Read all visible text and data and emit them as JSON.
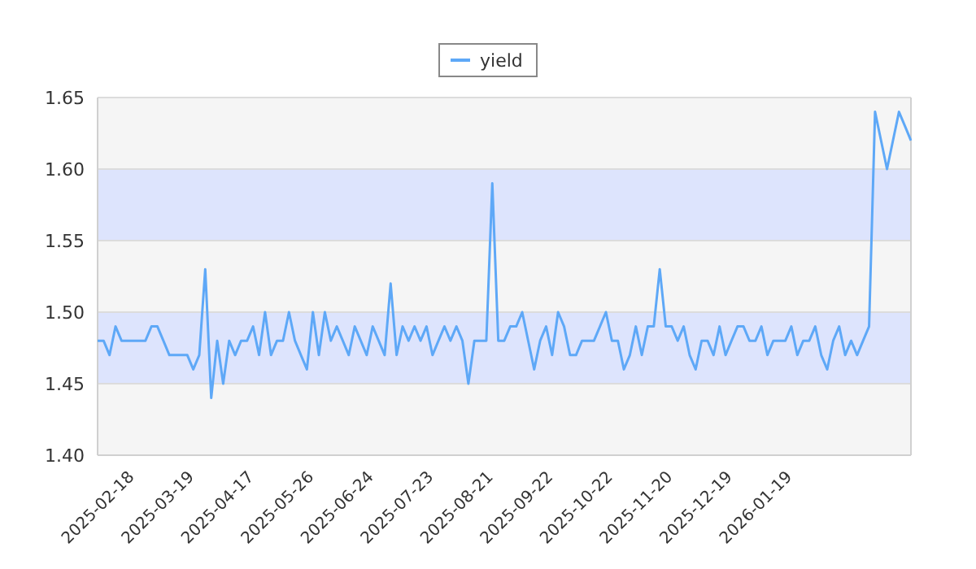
{
  "chart_data": {
    "type": "line",
    "categories": [
      "2025-02-18",
      null,
      null,
      null,
      null,
      null,
      null,
      null,
      null,
      null,
      "2025-03-19",
      null,
      null,
      null,
      null,
      null,
      null,
      null,
      null,
      null,
      "2025-04-17",
      null,
      null,
      null,
      null,
      null,
      null,
      null,
      null,
      null,
      "2025-05-26",
      null,
      null,
      null,
      null,
      null,
      null,
      null,
      null,
      null,
      "2025-06-24",
      null,
      null,
      null,
      null,
      null,
      null,
      null,
      null,
      null,
      "2025-07-23",
      null,
      null,
      null,
      null,
      null,
      null,
      null,
      null,
      null,
      "2025-08-21",
      null,
      null,
      null,
      null,
      null,
      null,
      null,
      null,
      null,
      "2025-09-22",
      null,
      null,
      null,
      null,
      null,
      null,
      null,
      null,
      null,
      "2025-10-22",
      null,
      null,
      null,
      null,
      null,
      null,
      null,
      null,
      null,
      "2025-11-20",
      null,
      null,
      null,
      null,
      null,
      null,
      null,
      null,
      null,
      "2025-12-19",
      null,
      null,
      null,
      null,
      null,
      null,
      null,
      null,
      null,
      "2026-01-19",
      null,
      null,
      null,
      null,
      null,
      null,
      null,
      null,
      null,
      null,
      null,
      null,
      null,
      null,
      null,
      null,
      null,
      null,
      null,
      null,
      null,
      null,
      null,
      null,
      null,
      null
    ],
    "series": [
      {
        "name": "yield",
        "color": "#5ea8f7",
        "values": [
          1.48,
          1.48,
          1.47,
          1.49,
          1.48,
          1.48,
          1.48,
          1.48,
          1.48,
          1.49,
          1.49,
          1.48,
          1.47,
          1.47,
          1.47,
          1.47,
          1.46,
          1.47,
          1.53,
          1.44,
          1.48,
          1.45,
          1.48,
          1.47,
          1.48,
          1.48,
          1.49,
          1.47,
          1.5,
          1.47,
          1.48,
          1.48,
          1.5,
          1.48,
          1.47,
          1.46,
          1.5,
          1.47,
          1.5,
          1.48,
          1.49,
          1.48,
          1.47,
          1.49,
          1.48,
          1.47,
          1.49,
          1.48,
          1.47,
          1.52,
          1.47,
          1.49,
          1.48,
          1.49,
          1.48,
          1.49,
          1.47,
          1.48,
          1.49,
          1.48,
          1.49,
          1.48,
          1.45,
          1.48,
          1.48,
          1.48,
          1.59,
          1.48,
          1.48,
          1.49,
          1.49,
          1.5,
          1.48,
          1.46,
          1.48,
          1.49,
          1.47,
          1.5,
          1.49,
          1.47,
          1.47,
          1.48,
          1.48,
          1.48,
          1.49,
          1.5,
          1.48,
          1.48,
          1.46,
          1.47,
          1.49,
          1.47,
          1.49,
          1.49,
          1.53,
          1.49,
          1.49,
          1.48,
          1.49,
          1.47,
          1.46,
          1.48,
          1.48,
          1.47,
          1.49,
          1.47,
          1.48,
          1.49,
          1.49,
          1.48,
          1.48,
          1.49,
          1.47,
          1.48,
          1.48,
          1.48,
          1.49,
          1.47,
          1.48,
          1.48,
          1.49,
          1.47,
          1.46,
          1.48,
          1.49,
          1.47,
          1.48,
          1.47,
          1.48,
          1.49,
          1.64,
          1.62,
          1.6,
          1.62,
          1.64,
          1.63,
          1.62
        ]
      }
    ],
    "ylim": [
      1.4,
      1.65
    ],
    "yticks": [
      {
        "value": 1.4,
        "label": "1.40"
      },
      1.45,
      {
        "value": 1.5,
        "label": "1.50"
      },
      1.55,
      {
        "value": 1.6,
        "label": "1.60"
      },
      1.65
    ],
    "bands": [
      {
        "axis": "y",
        "from": 1.45,
        "to": 1.5,
        "color": "#dde4fd"
      },
      {
        "axis": "y",
        "from": 1.55,
        "to": 1.6,
        "color": "#dde4fd"
      }
    ],
    "grid": "y",
    "legend": "top",
    "marker": "none",
    "line_style": "solid"
  }
}
